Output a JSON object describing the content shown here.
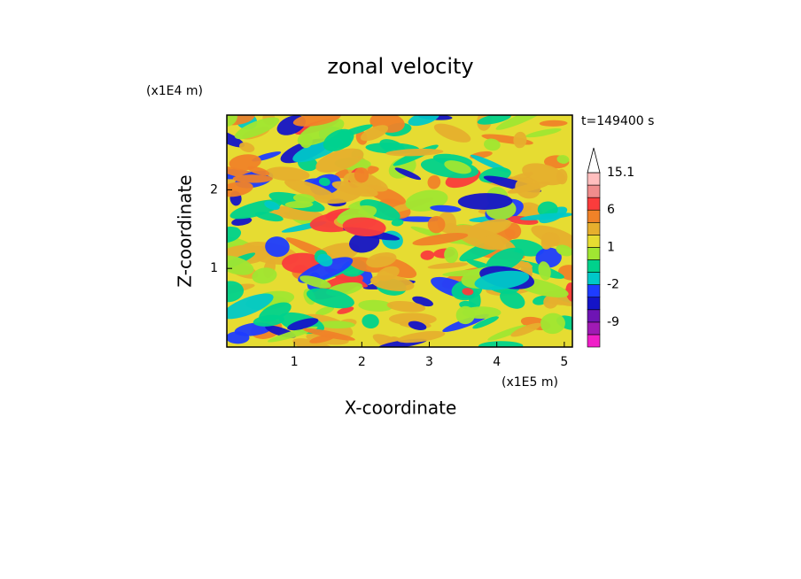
{
  "chart_data": {
    "type": "contour",
    "title": "zonal velocity",
    "x_label": "X-coordinate",
    "y_label": "Z-coordinate",
    "x_unit": "(x1E5 m)",
    "y_unit": "(x1E4 m)",
    "time_label": "t=149400 s",
    "xlim": [
      0,
      5.12
    ],
    "ylim": [
      0,
      2.95
    ],
    "xticks": [
      1,
      2,
      3,
      4,
      5
    ],
    "yticks": [
      1,
      2
    ],
    "colorbar": {
      "levels": [
        -12,
        -9,
        -6,
        -4,
        -2,
        -1,
        0,
        1,
        2,
        4,
        6,
        9,
        12,
        15.1
      ],
      "colors": [
        "#f01ec8",
        "#a01ab4",
        "#6e14b4",
        "#1414c8",
        "#1e3cff",
        "#00c8c8",
        "#00d28c",
        "#a0e632",
        "#e6dc32",
        "#e6af2d",
        "#f08228",
        "#fa3c3c",
        "#f08c8c",
        "#ffbebe",
        "#ffffff"
      ],
      "ticks": [
        -9,
        -2,
        1,
        6,
        15.1
      ]
    }
  }
}
